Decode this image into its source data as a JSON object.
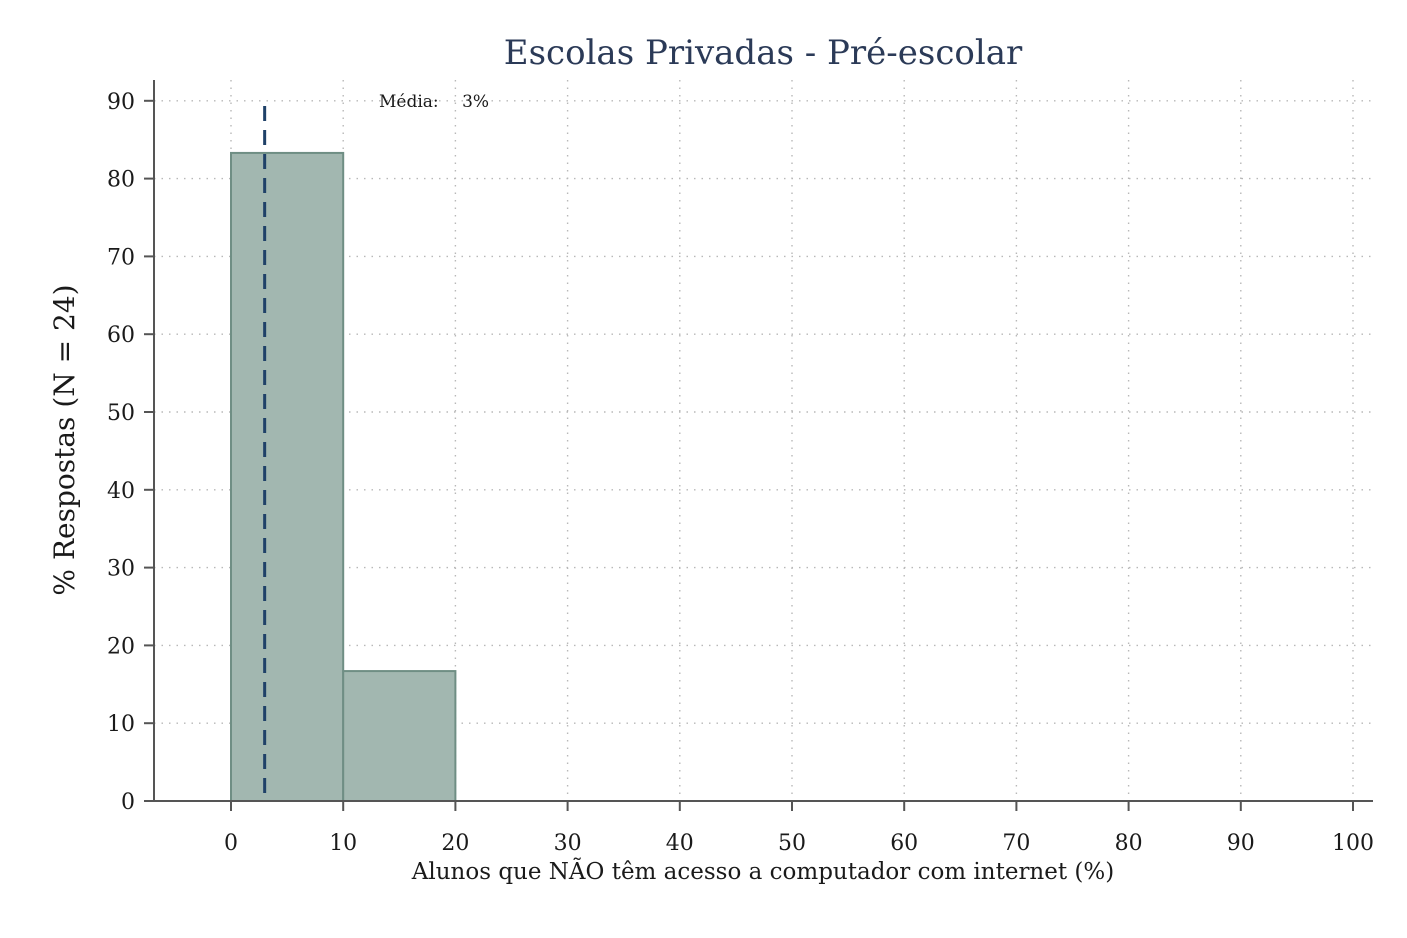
{
  "chart_data": {
    "type": "bar",
    "title": "Escolas Privadas - Pré-escolar",
    "xlabel": "Alunos que NÃO têm acesso a computador com internet (%)",
    "ylabel": "% Respostas (N =  24)",
    "bins": [
      {
        "start": 0,
        "end": 10,
        "value": 83.3
      },
      {
        "start": 10,
        "end": 20,
        "value": 16.7
      }
    ],
    "xlim": [
      -7,
      102
    ],
    "ylim": [
      0,
      92
    ],
    "xticks": [
      0,
      10,
      20,
      30,
      40,
      50,
      60,
      70,
      80,
      90,
      100
    ],
    "yticks": [
      0,
      10,
      20,
      30,
      40,
      50,
      60,
      70,
      80,
      90
    ],
    "mean_line": {
      "value": 3,
      "label_prefix": "Média:",
      "label_value": "3%"
    },
    "grid": true,
    "colors": {
      "bar_fill": "#a2b7b0",
      "bar_stroke": "#6f8e84",
      "mean_line": "#1f4168",
      "title": "#2b3a57",
      "grid": "#b8b8b8",
      "axis": "#555555"
    }
  }
}
